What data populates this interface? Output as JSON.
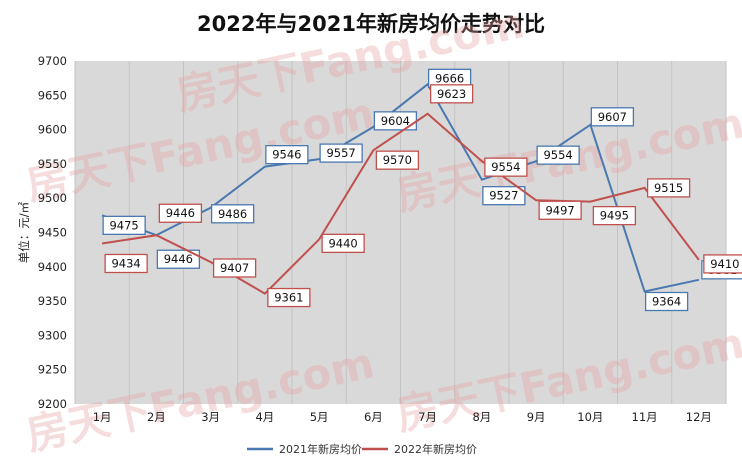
{
  "chart_data": {
    "type": "line",
    "title": "2022年与2021年新房均价走势对比",
    "ylabel": "单位：元/㎡",
    "xlabel": "",
    "ylim": [
      9200,
      9700
    ],
    "yticks": [
      9200,
      9250,
      9300,
      9350,
      9400,
      9450,
      9500,
      9550,
      9600,
      9650,
      9700
    ],
    "grid": "vertical",
    "legend": "bottom",
    "categories": [
      "1月",
      "2月",
      "3月",
      "4月",
      "5月",
      "6月",
      "7月",
      "8月",
      "9月",
      "10月",
      "11月",
      "12月"
    ],
    "series": [
      {
        "name": "2021年新房均价",
        "color": "#4a78b0",
        "values": [
          9475,
          9446,
          9486,
          9546,
          9557,
          9604,
          9666,
          9527,
          9554,
          9607,
          9364,
          9381
        ]
      },
      {
        "name": "2022年新房均价",
        "color": "#c0504d",
        "values": [
          9434,
          9446,
          9407,
          9361,
          9440,
          9570,
          9623,
          9554,
          9497,
          9495,
          9515,
          9410
        ]
      }
    ]
  },
  "watermark": "房天下Fang.com"
}
